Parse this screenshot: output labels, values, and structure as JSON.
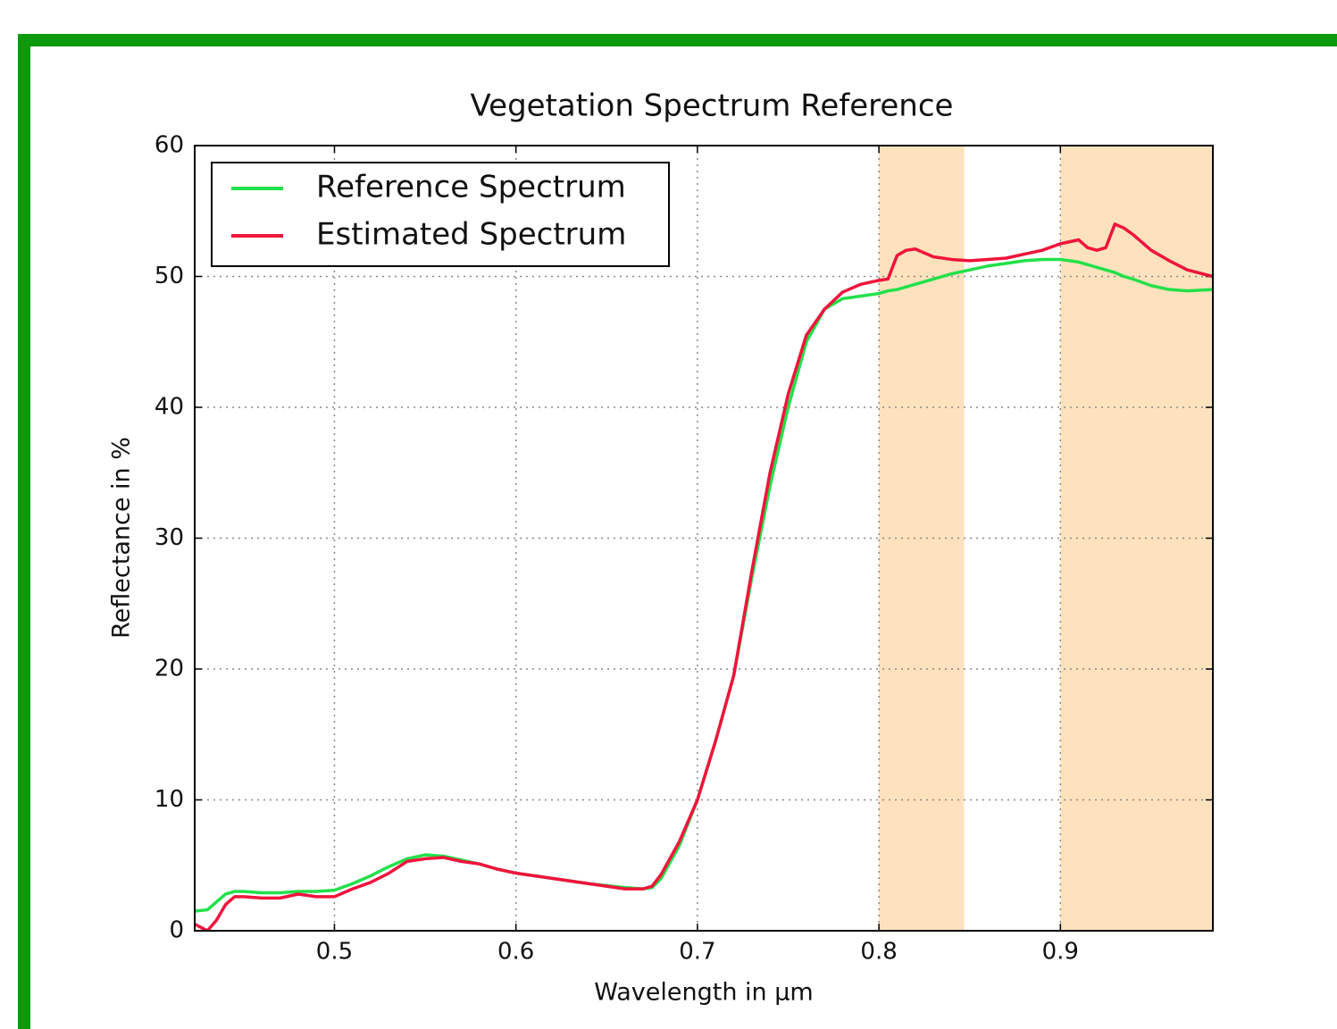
{
  "chart_data": {
    "type": "line",
    "title": "Vegetation Spectrum Reference",
    "x_label": "Wavelength in μm",
    "y_label": "Reflectance in %",
    "x": [
      0.423,
      0.43,
      0.435,
      0.44,
      0.445,
      0.45,
      0.46,
      0.47,
      0.48,
      0.49,
      0.5,
      0.51,
      0.52,
      0.53,
      0.54,
      0.55,
      0.56,
      0.57,
      0.58,
      0.59,
      0.6,
      0.62,
      0.64,
      0.66,
      0.67,
      0.675,
      0.68,
      0.69,
      0.7,
      0.71,
      0.72,
      0.73,
      0.74,
      0.75,
      0.76,
      0.77,
      0.78,
      0.79,
      0.8,
      0.805,
      0.81,
      0.815,
      0.82,
      0.83,
      0.84,
      0.85,
      0.86,
      0.87,
      0.88,
      0.89,
      0.9,
      0.91,
      0.915,
      0.92,
      0.925,
      0.93,
      0.935,
      0.94,
      0.95,
      0.96,
      0.97,
      0.984
    ],
    "series": [
      {
        "name": "Reference Spectrum",
        "color": "#22e04a",
        "values": [
          1.5,
          1.6,
          2.2,
          2.8,
          3.0,
          3.0,
          2.9,
          2.9,
          3.0,
          3.0,
          3.1,
          3.6,
          4.2,
          4.9,
          5.5,
          5.8,
          5.7,
          5.4,
          5.1,
          4.7,
          4.4,
          4.0,
          3.6,
          3.3,
          3.2,
          3.3,
          4.0,
          6.5,
          10,
          14.5,
          19.5,
          27,
          34,
          40,
          45,
          47.5,
          48.3,
          48.5,
          48.7,
          48.9,
          49.0,
          49.2,
          49.4,
          49.8,
          50.2,
          50.5,
          50.8,
          51.0,
          51.2,
          51.3,
          51.3,
          51.1,
          50.9,
          50.7,
          50.5,
          50.3,
          50.0,
          49.8,
          49.3,
          49.0,
          48.9,
          49.0
        ]
      },
      {
        "name": "Estimated Spectrum",
        "color": "#f0143c",
        "values": [
          0.5,
          0.0,
          0.8,
          2.0,
          2.6,
          2.6,
          2.5,
          2.5,
          2.8,
          2.6,
          2.6,
          3.2,
          3.7,
          4.4,
          5.3,
          5.5,
          5.6,
          5.3,
          5.1,
          4.7,
          4.4,
          4.0,
          3.6,
          3.2,
          3.2,
          3.4,
          4.3,
          6.8,
          10,
          14.5,
          19.5,
          27.5,
          35,
          41,
          45.5,
          47.5,
          48.8,
          49.4,
          49.7,
          49.8,
          51.6,
          52.0,
          52.1,
          51.5,
          51.3,
          51.2,
          51.3,
          51.4,
          51.7,
          52.0,
          52.5,
          52.8,
          52.2,
          52.0,
          52.2,
          54.0,
          53.7,
          53.2,
          52.0,
          51.2,
          50.5,
          50.0
        ]
      }
    ],
    "bands": [
      [
        0.8,
        0.847
      ],
      [
        0.9,
        0.984
      ]
    ],
    "band_color": "#fde2bd",
    "xlim": [
      0.423,
      0.984
    ],
    "xticks": [
      0.5,
      0.6,
      0.7,
      0.8,
      0.9
    ],
    "ylim": [
      0,
      60
    ],
    "yticks": [
      0,
      10,
      20,
      30,
      40,
      50,
      60
    ],
    "grid": true,
    "legend": "upper left"
  }
}
